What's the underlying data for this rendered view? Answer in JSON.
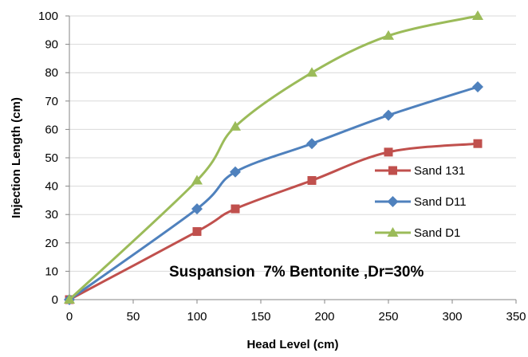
{
  "chart_data": {
    "type": "line",
    "title": "",
    "xlabel": "Head Level (cm)",
    "ylabel": "Injection Length (cm)",
    "xlim": [
      0,
      350
    ],
    "ylim": [
      0,
      100
    ],
    "xticks": [
      0,
      50,
      100,
      150,
      200,
      250,
      300,
      350
    ],
    "yticks": [
      0,
      10,
      20,
      30,
      40,
      50,
      60,
      70,
      80,
      90,
      100
    ],
    "grid": "horizontal",
    "legend_position": "right",
    "annotation": "Suspansion  7% Bentonite ,Dr=30%",
    "series": [
      {
        "name": "Sand 131",
        "color": "#C0504D",
        "marker": "square",
        "x": [
          0,
          100,
          130,
          190,
          250,
          320
        ],
        "y": [
          0,
          24,
          32,
          42,
          52,
          55
        ]
      },
      {
        "name": "Sand D11",
        "color": "#4F81BD",
        "marker": "diamond",
        "x": [
          0,
          100,
          130,
          190,
          250,
          320
        ],
        "y": [
          0,
          32,
          45,
          55,
          65,
          75
        ]
      },
      {
        "name": "Sand D1",
        "color": "#9BBB59",
        "marker": "triangle",
        "x": [
          0,
          100,
          130,
          190,
          250,
          320
        ],
        "y": [
          0,
          42,
          61,
          80,
          93,
          100
        ]
      }
    ]
  }
}
